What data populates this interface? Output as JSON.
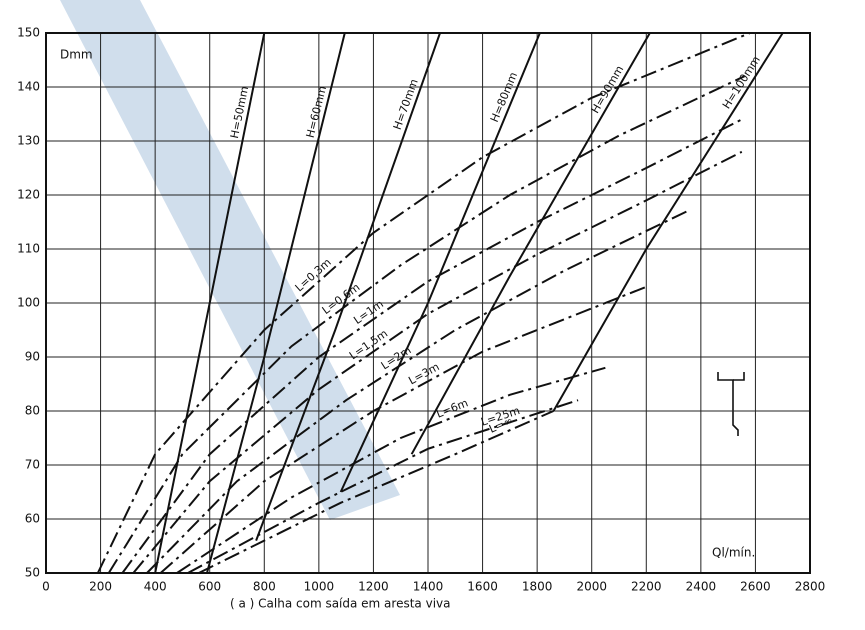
{
  "chart_data": {
    "type": "line",
    "caption": "( a )  Calha com saída em aresta viva",
    "ylabel": "Dmm",
    "xlabel": "Ql/mín.",
    "xlim": [
      0,
      2800
    ],
    "ylim": [
      50,
      150
    ],
    "xticks": [
      0,
      200,
      400,
      600,
      800,
      1000,
      1200,
      1400,
      1600,
      1800,
      2000,
      2200,
      2400,
      2600,
      2800
    ],
    "yticks": [
      50,
      60,
      70,
      80,
      90,
      100,
      110,
      120,
      130,
      140,
      150
    ],
    "grid": true,
    "series": [
      {
        "name": "H=50mm",
        "color": "#111111",
        "dashed": false,
        "x": [
          400,
          560,
          800
        ],
        "values": [
          50,
          90,
          150
        ]
      },
      {
        "name": "H=60mm",
        "color": "#111111",
        "dashed": false,
        "x": [
          590,
          800,
          1095
        ],
        "values": [
          50,
          90,
          150
        ]
      },
      {
        "name": "H=70mm",
        "color": "#111111",
        "dashed": false,
        "x": [
          770,
          1060,
          1444
        ],
        "values": [
          56,
          95,
          150
        ]
      },
      {
        "name": "H=80mm",
        "color": "#111111",
        "dashed": false,
        "x": [
          1080,
          1400,
          1810
        ],
        "values": [
          65,
          100,
          150
        ]
      },
      {
        "name": "H=90mm",
        "color": "#111111",
        "dashed": false,
        "x": [
          1340,
          1700,
          2213
        ],
        "values": [
          72,
          105,
          150
        ]
      },
      {
        "name": "H=100mm",
        "color": "#111111",
        "dashed": false,
        "x": [
          1860,
          2200,
          2700
        ],
        "values": [
          80,
          110,
          150
        ]
      },
      {
        "name": "L=0,3m",
        "color": "#111111",
        "dashed": true,
        "x": [
          190,
          400,
          800,
          1200,
          1600,
          2000,
          2580
        ],
        "values": [
          50,
          72,
          95,
          113,
          127,
          138,
          150
        ]
      },
      {
        "name": "L=0,6m",
        "color": "#111111",
        "dashed": true,
        "x": [
          230,
          500,
          900,
          1300,
          1700,
          2100,
          2560
        ],
        "values": [
          50,
          72,
          92,
          107,
          120,
          131,
          142
        ]
      },
      {
        "name": "L=1m",
        "color": "#111111",
        "dashed": true,
        "x": [
          280,
          600,
          1000,
          1400,
          1800,
          2200,
          2550
        ],
        "values": [
          50,
          72,
          90,
          104,
          115,
          125,
          134
        ]
      },
      {
        "name": "L=1,5m",
        "color": "#111111",
        "dashed": true,
        "x": [
          320,
          600,
          1000,
          1400,
          1800,
          2200,
          2550
        ],
        "values": [
          50,
          67,
          84,
          98,
          109,
          119,
          128
        ]
      },
      {
        "name": "L=2m",
        "color": "#111111",
        "dashed": true,
        "x": [
          370,
          700,
          1100,
          1500,
          1900,
          2350
        ],
        "values": [
          50,
          67,
          82,
          95,
          106,
          117
        ]
      },
      {
        "name": "L=3m",
        "color": "#111111",
        "dashed": true,
        "x": [
          420,
          800,
          1200,
          1600,
          2200
        ],
        "values": [
          50,
          67,
          80,
          91,
          103
        ]
      },
      {
        "name": "L=6m",
        "color": "#111111",
        "dashed": true,
        "x": [
          480,
          900,
          1300,
          1700,
          2050
        ],
        "values": [
          50,
          64,
          75,
          83,
          88
        ]
      },
      {
        "name": "L=25m",
        "color": "#111111",
        "dashed": true,
        "x": [
          520,
          1000,
          1400,
          1950
        ],
        "values": [
          50,
          63,
          73,
          82
        ]
      },
      {
        "name": "L=∞",
        "color": "#111111",
        "dashed": true,
        "x": [
          560,
          1080,
          1500,
          1860
        ],
        "values": [
          50,
          63,
          72,
          80
        ]
      }
    ]
  }
}
